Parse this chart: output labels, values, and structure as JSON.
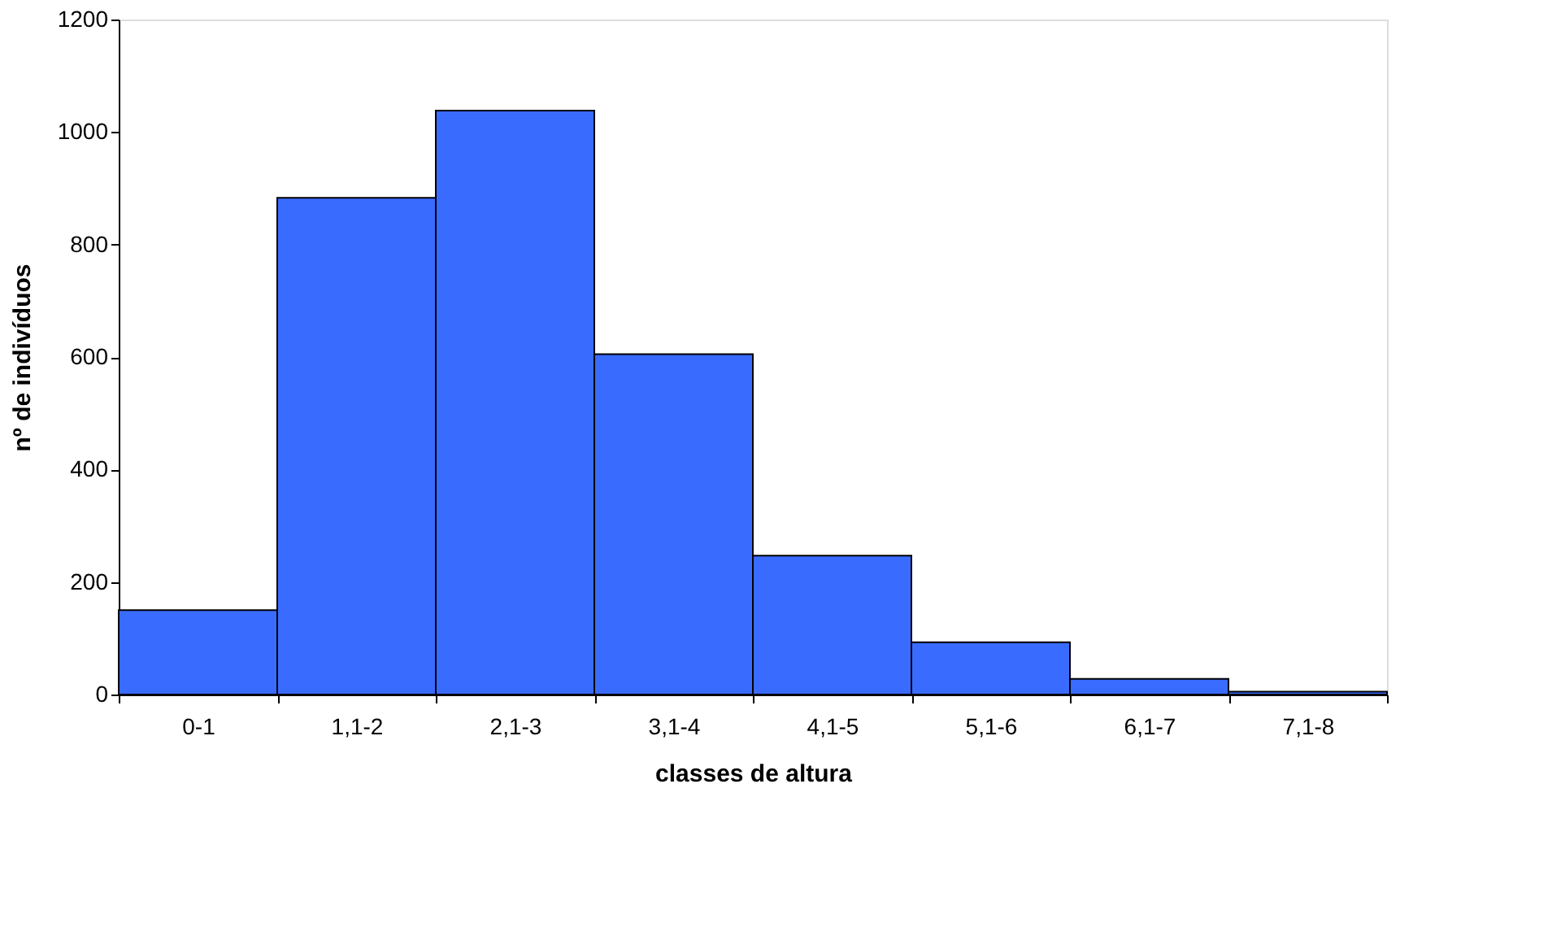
{
  "chart_data": {
    "type": "bar",
    "xlabel": "classes de altura",
    "ylabel": "nº de indivíduos",
    "categories": [
      "0-1",
      "1,1-2",
      "2,1-3",
      "3,1-4",
      "4,1-5",
      "5,1-6",
      "6,1-7",
      "7,1-8"
    ],
    "values": [
      150,
      883,
      1038,
      605,
      247,
      93,
      28,
      5
    ],
    "color": "#3a6bff",
    "ylim": [
      0,
      1200
    ],
    "yticks": [
      0,
      200,
      400,
      600,
      800,
      1000,
      1200
    ],
    "grid": false
  }
}
